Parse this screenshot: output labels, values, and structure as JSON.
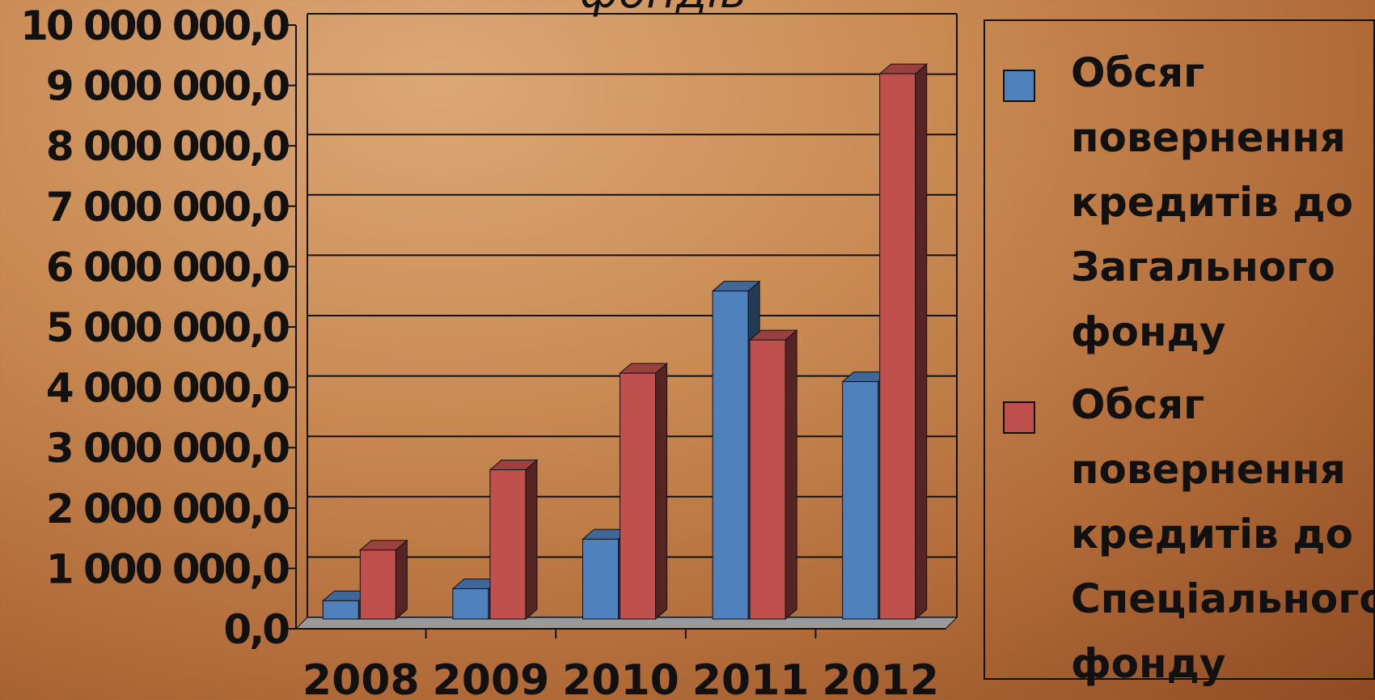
{
  "chart_data": {
    "type": "bar",
    "title_fragment": "фондів",
    "categories": [
      "2008",
      "2009",
      "2010",
      "2011",
      "2012"
    ],
    "y_tick_labels": [
      "0,0",
      "1 000 000,0",
      "2 000 000,0",
      "3 000 000,0",
      "4 000 000,0",
      "5 000 000,0",
      "6 000 000,0",
      "7 000 000,0",
      "8 000 000,0",
      "9 000 000,0",
      "10 000 000,0"
    ],
    "ylim": [
      0,
      10000000
    ],
    "y_step": 1000000,
    "grid": true,
    "legend_position": "right",
    "series": [
      {
        "name": "Обсяг повернення кредитів до Загального фонду",
        "color": "#4f81bd",
        "values": [
          330000,
          530000,
          1350000,
          5460000,
          3960000
        ]
      },
      {
        "name": "Обсяг повернення кредитів до Спеціального фонду",
        "color": "#c0504d",
        "values": [
          1170000,
          2500000,
          4100000,
          4650000,
          9060000
        ]
      }
    ]
  }
}
